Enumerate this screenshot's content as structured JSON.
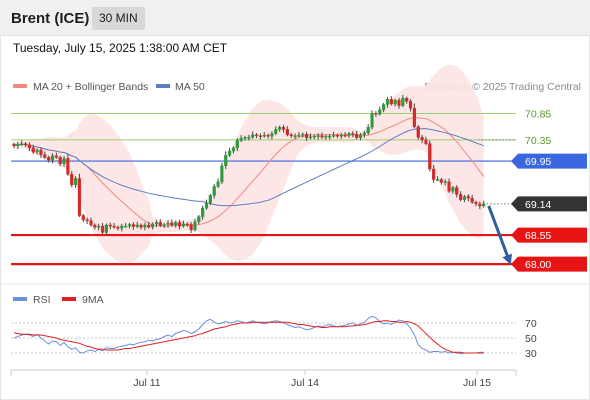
{
  "header": {
    "symbol": "Brent (ICE)",
    "timeframe": "30 MIN"
  },
  "timestamp": "Tuesday, July 15, 2025 1:38:00 AM CET",
  "legend": {
    "ma20": "MA 20 + Bollinger Bands",
    "ma50": "MA 50",
    "rsi": "RSI",
    "ma9": "9MA"
  },
  "credit": "Research © 2025 Trading Central",
  "colors": {
    "ma20": "#f08a80",
    "ma50": "#5a7fc0",
    "band": "#fde3e3",
    "resistance": "#9ccf6e",
    "pivot": "#3a67e0",
    "support": "#e61414",
    "last": "#333333",
    "arrow": "#2f5f9e",
    "rsi": "#6b8fe0",
    "ma9": "#e02020"
  },
  "chart_data": [
    {
      "type": "candlestick",
      "x_ticks": [
        "Jul 11",
        "Jul 14",
        "Jul 15"
      ],
      "ylim": [
        67.7,
        71.2
      ],
      "levels": [
        {
          "value": 70.85,
          "label": "70.85",
          "kind": "resistance"
        },
        {
          "value": 70.35,
          "label": "70.35",
          "kind": "resistance"
        },
        {
          "value": 69.95,
          "label": "69.95",
          "kind": "pivot"
        },
        {
          "value": 69.14,
          "label": "69.14",
          "kind": "last"
        },
        {
          "value": 68.55,
          "label": "68.55",
          "kind": "support"
        },
        {
          "value": 68.0,
          "label": "68.00",
          "kind": "support"
        }
      ],
      "close": [
        70.24,
        70.27,
        70.28,
        70.26,
        70.2,
        70.12,
        70.16,
        70.07,
        70.02,
        69.97,
        70.05,
        70.02,
        69.9,
        70.0,
        69.7,
        69.5,
        69.62,
        68.92,
        68.84,
        68.82,
        68.74,
        68.7,
        68.72,
        68.6,
        68.74,
        68.72,
        68.7,
        68.68,
        68.72,
        68.72,
        68.75,
        68.71,
        68.74,
        68.7,
        68.74,
        68.7,
        68.76,
        68.79,
        68.73,
        68.75,
        68.78,
        68.74,
        68.79,
        68.72,
        68.76,
        68.75,
        68.65,
        68.8,
        68.9,
        69.06,
        69.16,
        69.3,
        69.47,
        69.56,
        69.86,
        70.06,
        70.14,
        70.2,
        70.34,
        70.38,
        70.4,
        70.4,
        70.45,
        70.43,
        70.42,
        70.44,
        70.42,
        70.47,
        70.55,
        70.59,
        70.55,
        70.45,
        70.43,
        70.43,
        70.44,
        70.46,
        70.39,
        70.41,
        70.42,
        70.43,
        70.4,
        70.42,
        70.42,
        70.44,
        70.43,
        70.44,
        70.43,
        70.47,
        70.46,
        70.39,
        70.45,
        70.48,
        70.59,
        70.85,
        70.84,
        70.92,
        71.02,
        71.12,
        71.03,
        71.1,
        71.0,
        71.14,
        71.08,
        70.95,
        70.6,
        70.4,
        70.35,
        70.28,
        69.8,
        69.6,
        69.6,
        69.55,
        69.56,
        69.38,
        69.45,
        69.32,
        69.22,
        69.28,
        69.25,
        69.17,
        69.14,
        69.1,
        69.14
      ],
      "rsi": {
        "ticks": [
          70,
          50,
          30
        ],
        "ylim": [
          10,
          90
        ]
      },
      "rsi_values": [
        50,
        52,
        54,
        55,
        54,
        52,
        55,
        50,
        46,
        42,
        46,
        45,
        40,
        44,
        38,
        35,
        37,
        31,
        30,
        33,
        34,
        32,
        35,
        33,
        37,
        36,
        36,
        38,
        39,
        40,
        42,
        41,
        43,
        44,
        45,
        47,
        46,
        48,
        49,
        52,
        54,
        52,
        56,
        58,
        60,
        59,
        56,
        58,
        62,
        68,
        73,
        75,
        71,
        69,
        70,
        72,
        70,
        71,
        73,
        72,
        70,
        71,
        73,
        71,
        70,
        69,
        70,
        72,
        73,
        72,
        70,
        68,
        66,
        64,
        65,
        63,
        61,
        62,
        64,
        66,
        65,
        67,
        68,
        66,
        65,
        66,
        67,
        69,
        70,
        67,
        69,
        71,
        76,
        79,
        77,
        72,
        69,
        70,
        68,
        71,
        74,
        73,
        69,
        63,
        54,
        41,
        36,
        34,
        31,
        32,
        32,
        31,
        32,
        30,
        31,
        30,
        29,
        30,
        30,
        30,
        30,
        31,
        31
      ],
      "ma9_values": [
        57,
        56,
        55,
        55,
        55,
        54,
        54,
        54,
        53,
        52,
        51,
        50,
        48,
        47,
        46,
        45,
        44,
        43,
        41,
        39,
        38,
        36,
        35,
        35,
        34,
        34,
        34,
        34,
        35,
        36,
        36,
        37,
        38,
        39,
        40,
        41,
        42,
        43,
        44,
        45,
        46,
        47,
        48,
        49,
        50,
        51,
        52,
        53,
        55,
        56,
        58,
        60,
        62,
        63,
        64,
        65,
        67,
        68,
        69,
        70,
        70,
        70,
        71,
        71,
        71,
        71,
        71,
        71,
        71,
        71,
        71,
        71,
        70,
        69,
        68,
        68,
        67,
        66,
        65,
        65,
        64,
        64,
        65,
        65,
        65,
        65,
        65,
        66,
        66,
        67,
        67,
        68,
        69,
        71,
        72,
        72,
        73,
        73,
        72,
        72,
        71,
        71,
        72,
        71,
        69,
        66,
        61,
        56,
        51,
        46,
        42,
        38,
        35,
        33,
        31,
        31,
        31,
        30,
        30,
        30,
        30,
        30,
        30
      ]
    }
  ]
}
